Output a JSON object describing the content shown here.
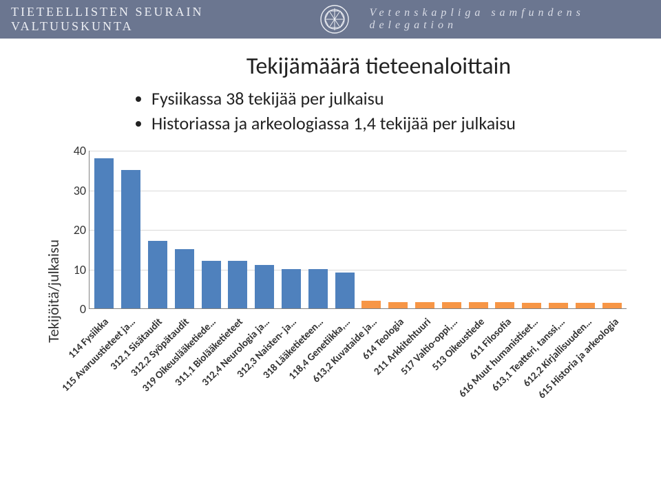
{
  "header": {
    "left": "TIETEELLISTEN SEURAIN VALTUUSKUNTA",
    "right": "Vetenskapliga samfundens delegation",
    "bg_color": "#6b7690",
    "text_color": "#eceef3"
  },
  "chart": {
    "type": "bar",
    "title": "Tekijämäärä tieteenaloittain",
    "bullets": [
      "Fysiikassa 38 tekijää per julkaisu",
      "Historiassa ja arkeologiassa 1,4 tekijää per julkaisu"
    ],
    "ylabel": "Tekijöitä/julkaisu",
    "ylim": [
      0,
      40
    ],
    "yticks": [
      0,
      10,
      20,
      30,
      40
    ],
    "grid_color": "#d9d9d9",
    "axis_color": "#808080",
    "bar_width": 0.72,
    "title_fontsize": 34,
    "bullet_fontsize": 26,
    "ylabel_fontsize": 22,
    "tick_fontsize": 18,
    "xlabel_fontsize": 15,
    "series": [
      {
        "label": "114 Fysiikka",
        "value": 38,
        "color": "#4f81bd"
      },
      {
        "label": "115 Avaruustieteet ja…",
        "value": 35,
        "color": "#4f81bd"
      },
      {
        "label": "312,1 Sisätaudit",
        "value": 17,
        "color": "#4f81bd"
      },
      {
        "label": "312,2 Syöpätaudit",
        "value": 15,
        "color": "#4f81bd"
      },
      {
        "label": "319 Oikeuslääketiede…",
        "value": 12,
        "color": "#4f81bd"
      },
      {
        "label": "311,1 Biolääketieteet",
        "value": 12,
        "color": "#4f81bd"
      },
      {
        "label": "312,4 Neurologia ja…",
        "value": 11,
        "color": "#4f81bd"
      },
      {
        "label": "312,3 Naisten- ja…",
        "value": 10,
        "color": "#4f81bd"
      },
      {
        "label": "318 Lääketieteen…",
        "value": 10,
        "color": "#4f81bd"
      },
      {
        "label": "118,4 Genetiikka,…",
        "value": 9,
        "color": "#4f81bd"
      },
      {
        "label": "613,2 Kuvataide ja…",
        "value": 2,
        "color": "#f79646"
      },
      {
        "label": "614 Teologia",
        "value": 1.6,
        "color": "#f79646"
      },
      {
        "label": "211 Arkkitehtuuri",
        "value": 1.6,
        "color": "#f79646"
      },
      {
        "label": "517 Valtio-oppi,…",
        "value": 1.6,
        "color": "#f79646"
      },
      {
        "label": "513 Oikeustiede",
        "value": 1.5,
        "color": "#f79646"
      },
      {
        "label": "611 Filosofia",
        "value": 1.5,
        "color": "#f79646"
      },
      {
        "label": "616 Muut humanistiset…",
        "value": 1.4,
        "color": "#f79646"
      },
      {
        "label": "613,1 Teatteri, tanssi,…",
        "value": 1.4,
        "color": "#f79646"
      },
      {
        "label": "612,2 Kirjallisuuden…",
        "value": 1.4,
        "color": "#f79646"
      },
      {
        "label": "615 Historia ja arkeologia",
        "value": 1.4,
        "color": "#f79646"
      }
    ]
  }
}
